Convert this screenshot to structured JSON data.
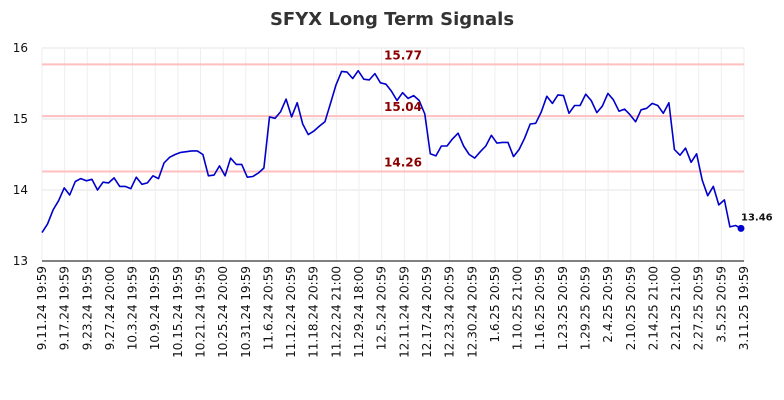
{
  "chart_data": {
    "type": "line",
    "title": "SFYX Long Term Signals",
    "xlabel": "",
    "ylabel": "",
    "ylim": [
      13,
      16
    ],
    "yticks": [
      "13",
      "14",
      "15",
      "16"
    ],
    "xtick_labels": [
      "9.11.24 19:59",
      "9.17.24 19:59",
      "9.23.24 19:59",
      "9.27.24 20:00",
      "10.3.24 19:59",
      "10.9.24 19:59",
      "10.15.24 19:59",
      "10.21.24 19:59",
      "10.25.24 20:00",
      "10.31.24 19:59",
      "11.6.24 20:59",
      "11.12.24 20:59",
      "11.18.24 20:59",
      "11.22.24 21:00",
      "11.29.24 18:00",
      "12.5.24 20:59",
      "12.11.24 20:59",
      "12.17.24 20:59",
      "12.23.24 20:59",
      "12.30.24 20:59",
      "1.6.25 20:59",
      "1.10.25 21:00",
      "1.16.25 20:59",
      "1.23.25 20:59",
      "1.29.25 20:59",
      "2.4.25 20:59",
      "2.10.25 20:59",
      "2.14.25 21:00",
      "2.21.25 21:00",
      "2.27.25 20:59",
      "3.5.25 20:59",
      "3.11.25 19:59"
    ],
    "grid": true,
    "reference_lines": [
      {
        "value": 15.77,
        "label": "15.77"
      },
      {
        "value": 15.04,
        "label": "15.04"
      },
      {
        "value": 14.26,
        "label": "14.26"
      }
    ],
    "last_value_label": "13.46",
    "series": [
      {
        "color": "#0000cc",
        "values": [
          13.4,
          13.52,
          13.72,
          13.85,
          14.03,
          13.93,
          14.12,
          14.16,
          14.13,
          14.15,
          14.0,
          14.11,
          14.1,
          14.17,
          14.05,
          14.05,
          14.02,
          14.18,
          14.08,
          14.1,
          14.2,
          14.16,
          14.38,
          14.46,
          14.5,
          14.53,
          14.54,
          14.55,
          14.55,
          14.5,
          14.2,
          14.21,
          14.34,
          14.2,
          14.45,
          14.36,
          14.36,
          14.18,
          14.19,
          14.24,
          14.31,
          15.03,
          15.01,
          15.1,
          15.28,
          15.03,
          15.23,
          14.93,
          14.78,
          14.83,
          14.9,
          14.96,
          15.22,
          15.48,
          15.67,
          15.66,
          15.57,
          15.68,
          15.56,
          15.55,
          15.64,
          15.51,
          15.49,
          15.39,
          15.26,
          15.37,
          15.29,
          15.33,
          15.26,
          15.07,
          14.51,
          14.48,
          14.62,
          14.62,
          14.72,
          14.8,
          14.62,
          14.5,
          14.45,
          14.54,
          14.62,
          14.77,
          14.66,
          14.67,
          14.67,
          14.47,
          14.57,
          14.73,
          14.93,
          14.94,
          15.1,
          15.32,
          15.22,
          15.34,
          15.33,
          15.08,
          15.19,
          15.19,
          15.35,
          15.26,
          15.09,
          15.18,
          15.36,
          15.27,
          15.11,
          15.14,
          15.06,
          14.96,
          15.13,
          15.15,
          15.22,
          15.19,
          15.08,
          15.23,
          14.57,
          14.49,
          14.59,
          14.39,
          14.51,
          14.14,
          13.92,
          14.05,
          13.79,
          13.86,
          13.48,
          13.5,
          13.46
        ]
      }
    ]
  }
}
